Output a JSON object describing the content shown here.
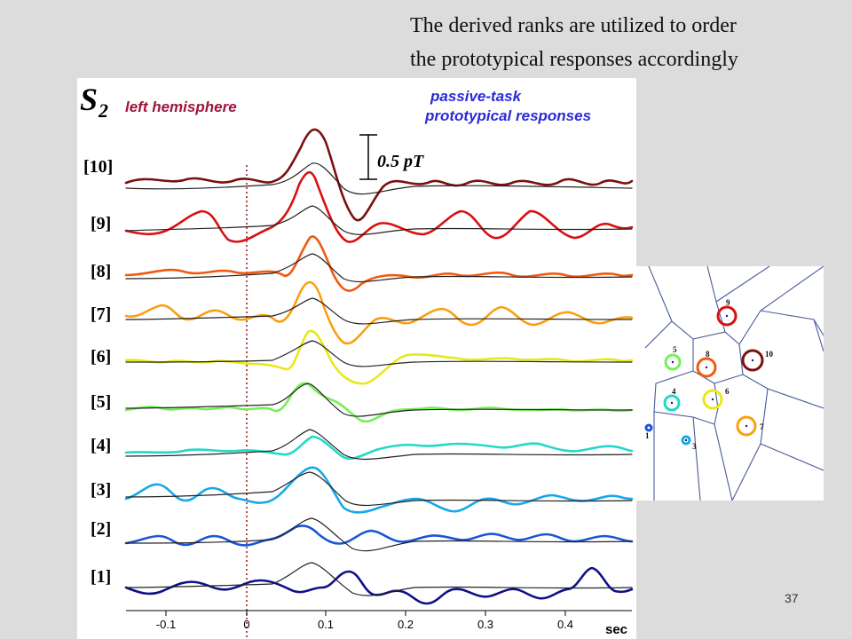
{
  "caption": {
    "line1": "The derived ranks are utilized to order",
    "line2": "the prototypical responses accordingly"
  },
  "figure": {
    "subject": "S",
    "subject_sub": "2",
    "hemisphere": "left hemisphere",
    "task_line1": "passive-task",
    "task_line2": "prototypical responses",
    "scale_bar_label": "0.5 pT",
    "x_unit": "sec",
    "x_ticks": [
      "-0.1",
      "0",
      "0.1",
      "0.2",
      "0.3",
      "0.4"
    ],
    "ranks": [
      "[10]",
      "[9]",
      "[8]",
      "[7]",
      "[6]",
      "[5]",
      "[4]",
      "[3]",
      "[2]",
      "[1]"
    ]
  },
  "colors": {
    "rank10": "#7a1010",
    "rank9": "#d81010",
    "rank8": "#f05a10",
    "rank7": "#f8a010",
    "rank6": "#e8e818",
    "rank5": "#78ee5a",
    "rank4": "#22d8c8",
    "rank3": "#18a8e8",
    "rank2": "#1a55d8",
    "rank1": "#101088",
    "hemisphere_text": "#a0143c",
    "task_text": "#2a2ad8",
    "stimulus_line": "#a01010"
  },
  "voronoi": {
    "labels": [
      "1",
      "3",
      "4",
      "5",
      "6",
      "7",
      "8",
      "9",
      "10"
    ]
  },
  "footer": {
    "slide_number": "37"
  }
}
